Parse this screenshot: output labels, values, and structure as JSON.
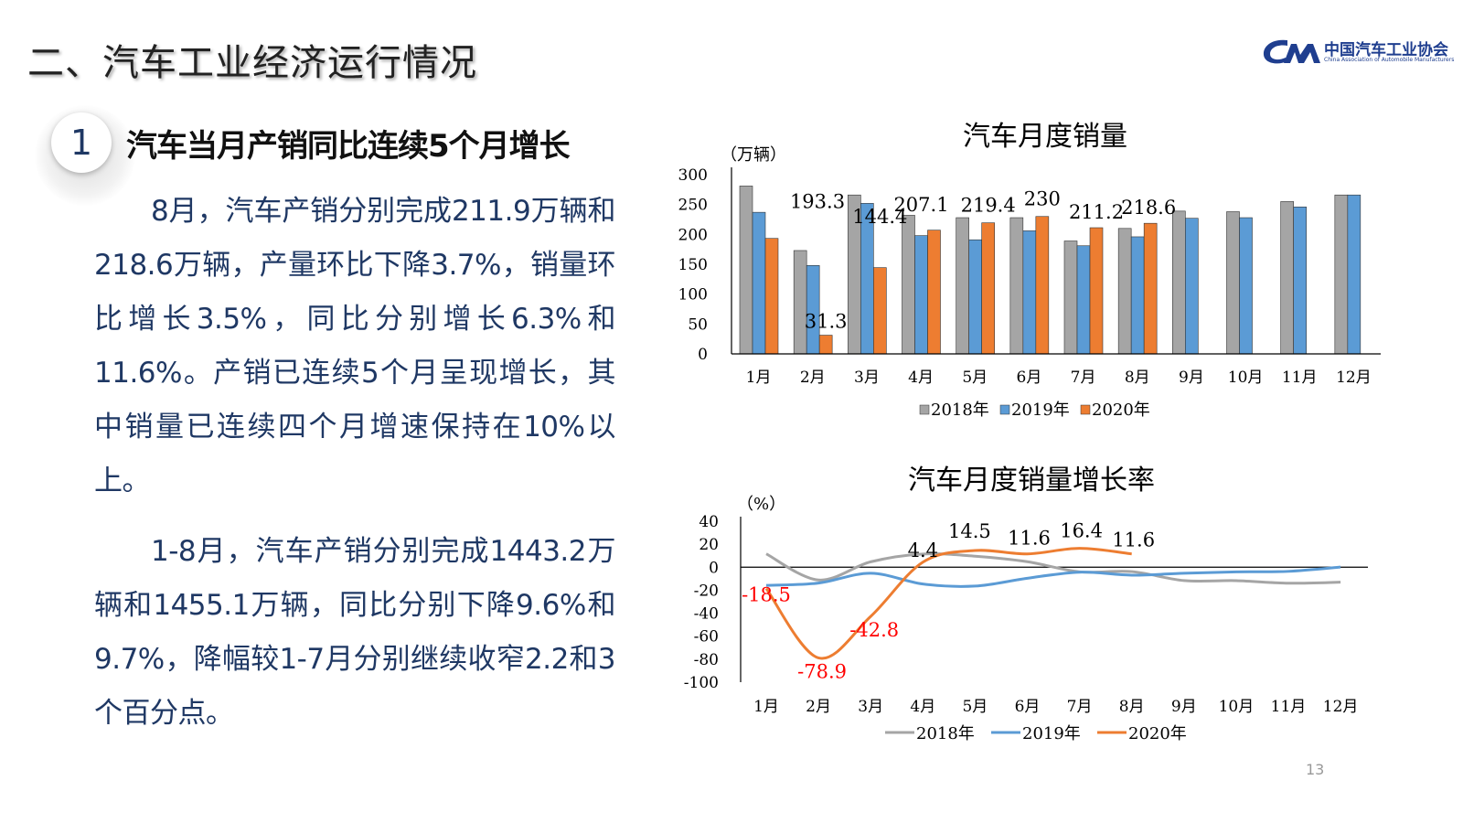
{
  "header": {
    "title": "二、汽车工业经济运行情况"
  },
  "logo": {
    "cn": "中国汽车工业协会",
    "en": "China Association of Automobile Manufacturers"
  },
  "section": {
    "number": "1",
    "heading": "汽车当月产销同比连续5个月增长"
  },
  "body": {
    "p1": "8月，汽车产销分别完成211.9万辆和218.6万辆，产量环比下降3.7%，销量环比增长3.5%，同比分别增长6.3%和11.6%。产销已连续5个月呈现增长，其中销量已连续四个月增速保持在10%以上。",
    "p2": "1-8月，汽车产销分别完成1443.2万辆和1455.1万辆，同比分别下降9.6%和9.7%，降幅较1-7月分别继续收窄2.2和3个百分点。"
  },
  "page_number": "13",
  "colors": {
    "s2018": "#a5a5a5",
    "s2019": "#5b9bd5",
    "s2020": "#ed7d31",
    "body_text": "#1f3864"
  },
  "chart_data": [
    {
      "type": "bar",
      "title": "汽车月度销量",
      "ylabel": "（万辆）",
      "ylim": [
        0,
        300
      ],
      "yticks": [
        "0",
        "50",
        "100",
        "150",
        "200",
        "250",
        "300"
      ],
      "categories": [
        "1月",
        "2月",
        "3月",
        "4月",
        "5月",
        "6月",
        "7月",
        "8月",
        "9月",
        "10月",
        "11月",
        "12月"
      ],
      "series": [
        {
          "name": "2018年",
          "values": [
            281,
            173,
            266,
            232,
            228,
            228,
            189,
            210,
            239,
            238,
            255,
            266
          ]
        },
        {
          "name": "2019年",
          "values": [
            237,
            148,
            252,
            198,
            191,
            206,
            181,
            196,
            227,
            228,
            246,
            266
          ]
        },
        {
          "name": "2020年",
          "values": [
            193.3,
            31.3,
            144.4,
            207.1,
            219.4,
            230,
            211.2,
            218.6,
            null,
            null,
            null,
            null
          ]
        }
      ],
      "data_labels": [
        "193.3",
        "31.3",
        "144.4",
        "207.1",
        "219.4",
        "230",
        "211.2",
        "218.6"
      ],
      "legend": "bottom"
    },
    {
      "type": "line",
      "title": "汽车月度销量增长率",
      "ylabel": "（%）",
      "ylim": [
        -100,
        40
      ],
      "yticks": [
        "40",
        "20",
        "0",
        "-20",
        "-40",
        "-60",
        "-80",
        "-100"
      ],
      "categories": [
        "1月",
        "2月",
        "3月",
        "4月",
        "5月",
        "6月",
        "7月",
        "8月",
        "9月",
        "10月",
        "11月",
        "12月"
      ],
      "series": [
        {
          "name": "2018年",
          "values": [
            11.6,
            -11.1,
            4.7,
            11.5,
            9.6,
            4.8,
            -4.0,
            -3.8,
            -11.6,
            -11.7,
            -13.9,
            -13.0
          ]
        },
        {
          "name": "2019年",
          "values": [
            -15.8,
            -13.8,
            -5.2,
            -14.6,
            -16.4,
            -9.6,
            -4.3,
            -6.9,
            -5.2,
            -4.0,
            -3.6,
            0.1
          ]
        },
        {
          "name": "2020年",
          "values": [
            -18.5,
            -78.9,
            -42.8,
            4.4,
            14.5,
            11.6,
            16.4,
            11.6,
            null,
            null,
            null,
            null
          ]
        }
      ],
      "data_labels": [
        "-18.5",
        "-78.9",
        "-42.8",
        "4.4",
        "14.5",
        "11.6",
        "16.4",
        "11.6"
      ],
      "legend": "bottom"
    }
  ]
}
